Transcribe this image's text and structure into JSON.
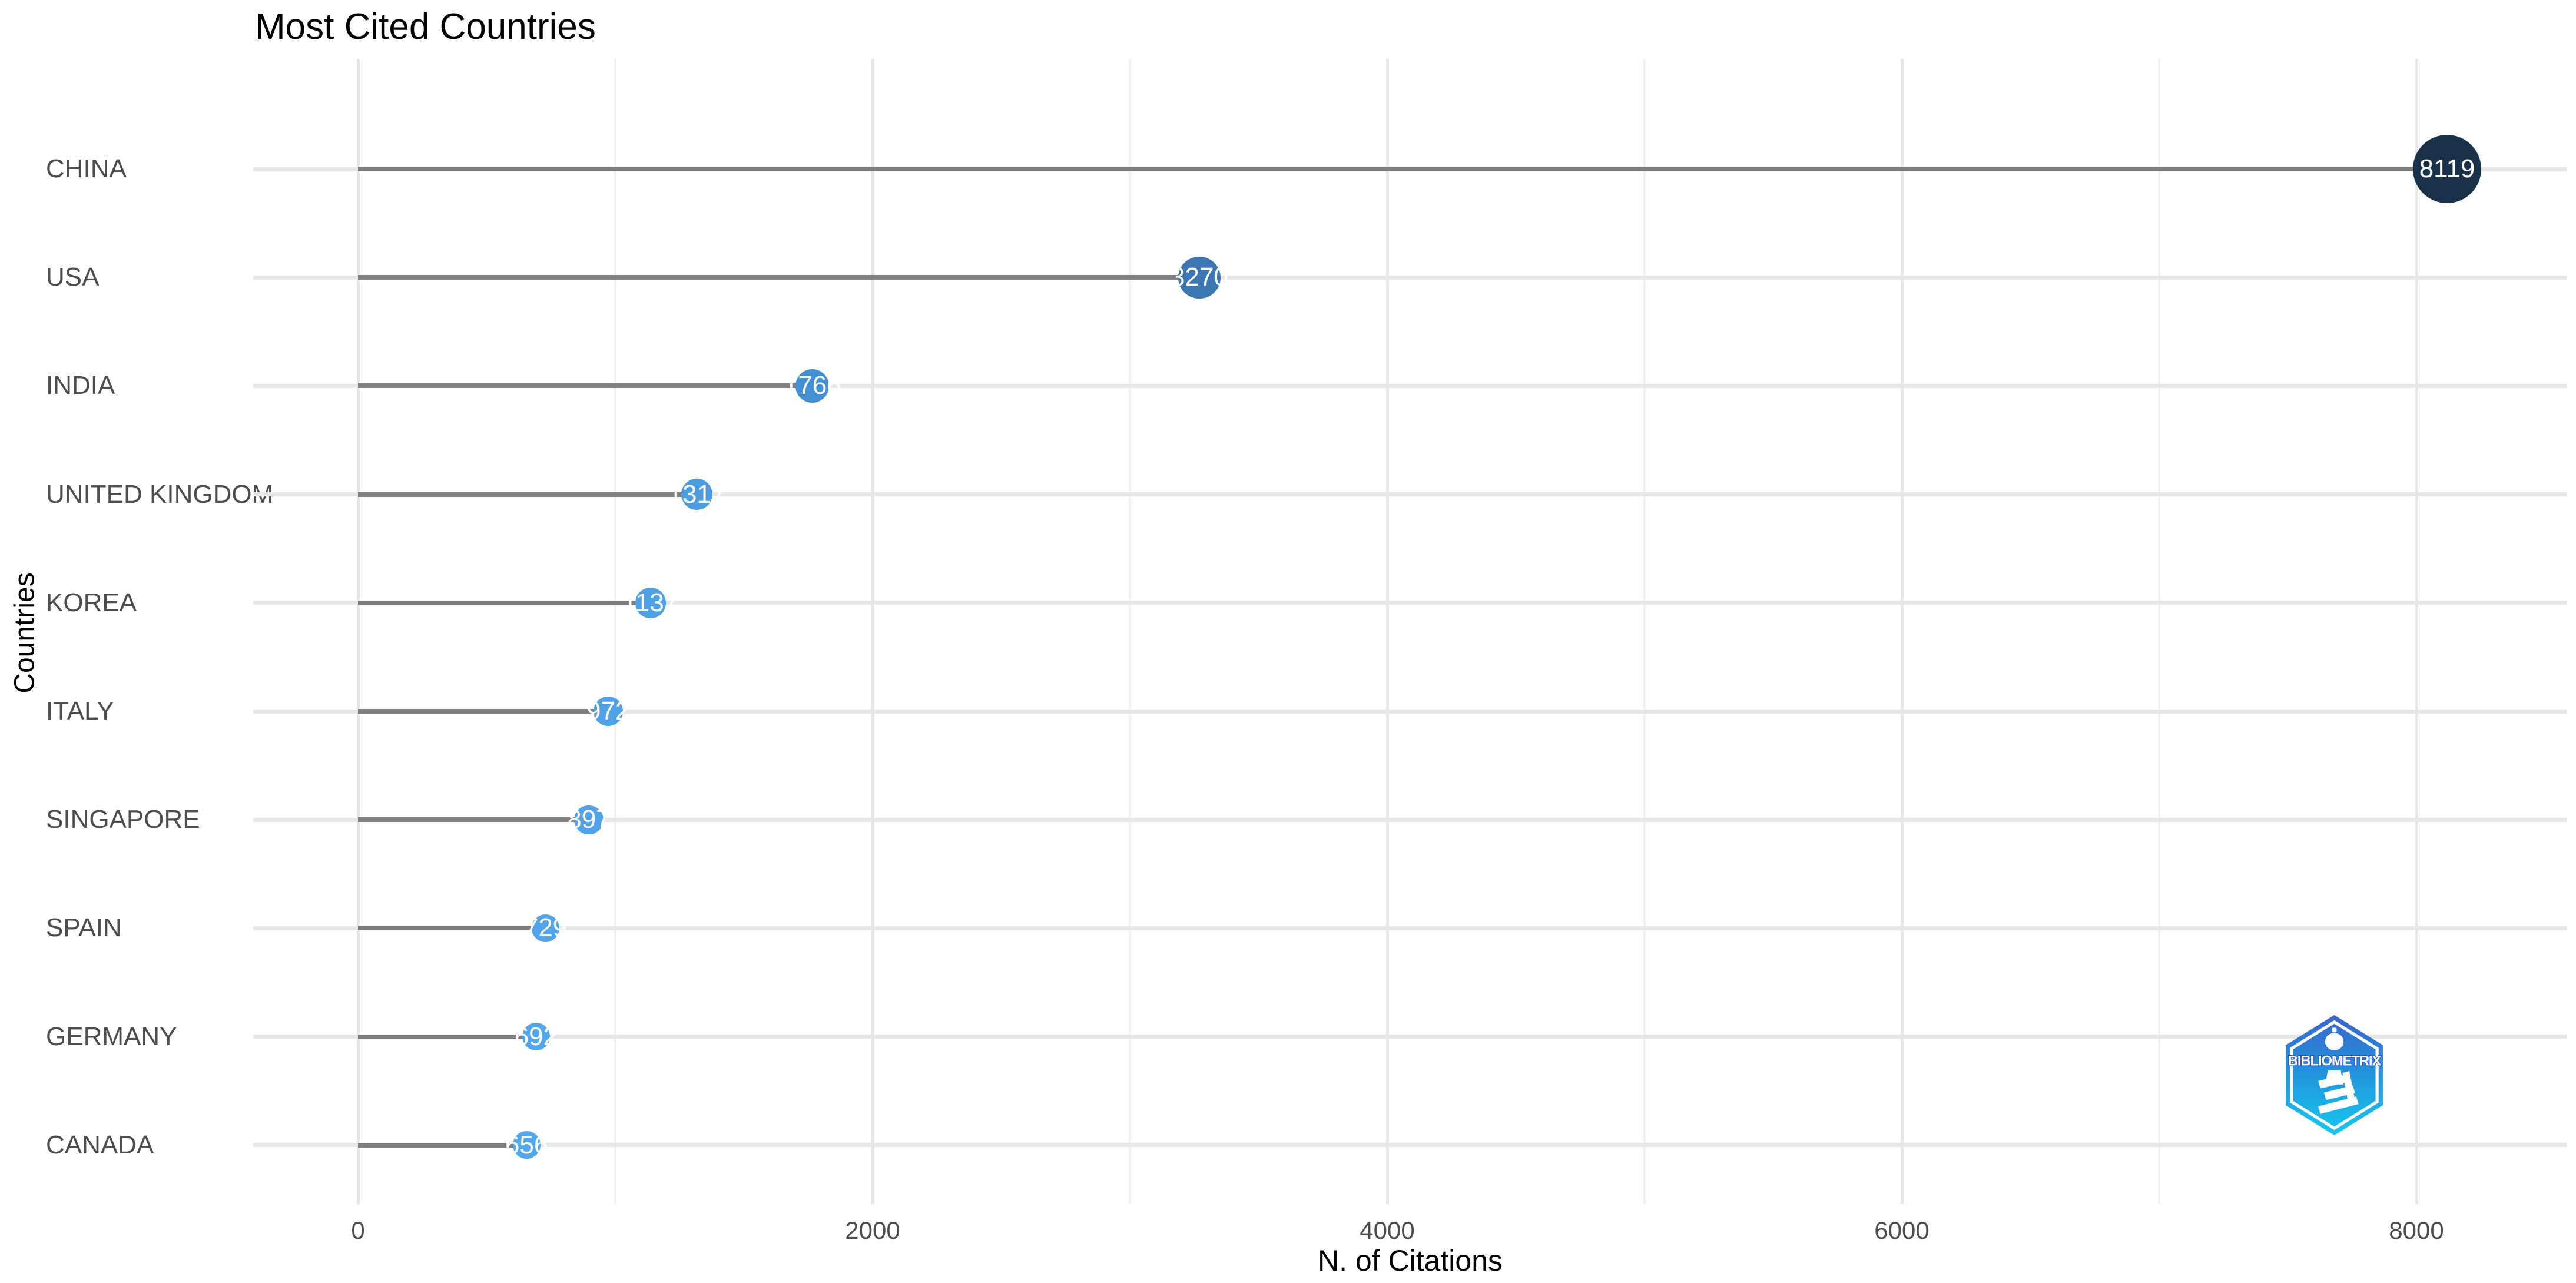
{
  "chart_data": {
    "type": "lollipop",
    "orientation": "horizontal",
    "title": "Most Cited Countries",
    "xlabel": "N. of Citations",
    "ylabel": "Countries",
    "categories": [
      "CHINA",
      "USA",
      "INDIA",
      "UNITED KINGDOM",
      "KOREA",
      "ITALY",
      "SINGAPORE",
      "SPAIN",
      "GERMANY",
      "CANADA"
    ],
    "values": [
      8119,
      3270,
      1766,
      1317,
      1137,
      972,
      897,
      729,
      692,
      656
    ],
    "xticks": [
      0,
      2000,
      4000,
      6000,
      8000
    ],
    "xticks_minor": [
      1000,
      3000,
      5000,
      7000
    ],
    "xlim": [
      -406,
      8525
    ],
    "grid": true,
    "legend": "none",
    "dot_colors": [
      "#1a3249",
      "#3a77b3",
      "#4590d4",
      "#4c9ce2",
      "#4ea0e7",
      "#4fa2e8",
      "#50a3e9",
      "#52a5ea",
      "#52a6eb",
      "#53a7ec"
    ],
    "colors": {
      "dot_label": "#ffffff",
      "stick": "#7f7f7f",
      "grid_major": "#e7e7e7",
      "grid_minor": "#f1f1f1",
      "axis_text": "#4d4d4d",
      "title_text": "#000000"
    }
  },
  "logo": {
    "text": "BIBLIOMETRIX",
    "gradient_top": "#3a64cc",
    "gradient_mid": "#2196dd",
    "gradient_bottom": "#17c8ee",
    "text_stroke": "#2b50c8"
  }
}
